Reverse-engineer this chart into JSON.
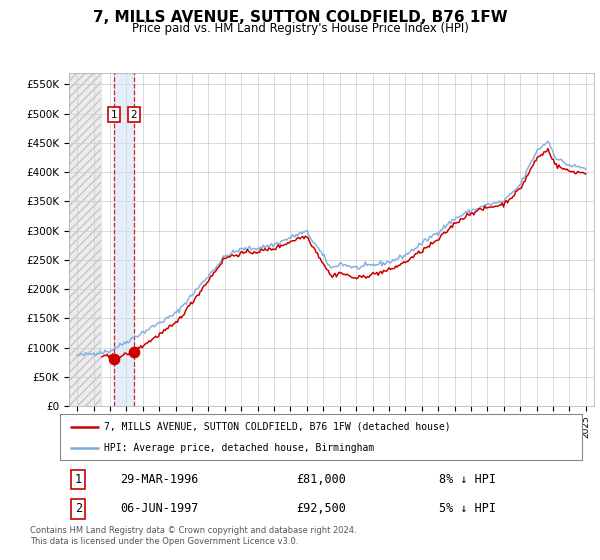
{
  "title": "7, MILLS AVENUE, SUTTON COLDFIELD, B76 1FW",
  "subtitle": "Price paid vs. HM Land Registry's House Price Index (HPI)",
  "title_fontsize": 11,
  "subtitle_fontsize": 8.5,
  "legend_line1": "7, MILLS AVENUE, SUTTON COLDFIELD, B76 1FW (detached house)",
  "legend_line2": "HPI: Average price, detached house, Birmingham",
  "sale1_date": "29-MAR-1996",
  "sale1_price": "£81,000",
  "sale1_hpi": "8% ↓ HPI",
  "sale1_year": 1996.24,
  "sale1_value": 81000,
  "sale2_date": "06-JUN-1997",
  "sale2_price": "£92,500",
  "sale2_hpi": "5% ↓ HPI",
  "sale2_year": 1997.44,
  "sale2_value": 92500,
  "red_color": "#cc0000",
  "blue_color": "#7aaadd",
  "background_color": "#ffffff",
  "plot_bg_color": "#ffffff",
  "grid_color": "#cccccc",
  "xmin": 1993.5,
  "xmax": 2025.5,
  "ymin": 0,
  "ymax": 570000,
  "yticks": [
    0,
    50000,
    100000,
    150000,
    200000,
    250000,
    300000,
    350000,
    400000,
    450000,
    500000,
    550000
  ],
  "footnote": "Contains HM Land Registry data © Crown copyright and database right 2024.\nThis data is licensed under the Open Government Licence v3.0."
}
